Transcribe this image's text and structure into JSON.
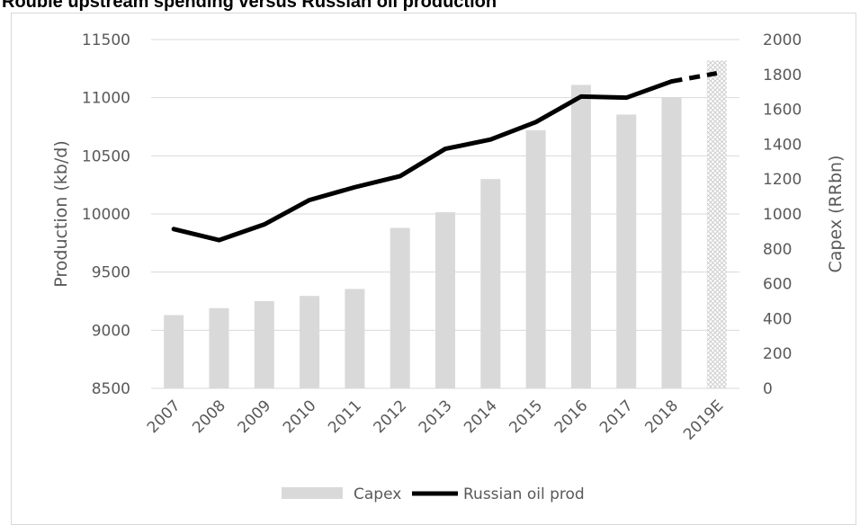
{
  "chart_data": {
    "type": "bar",
    "title": "Rouble upstream spending versus Russian oil production",
    "categories": [
      "2007",
      "2008",
      "2009",
      "2010",
      "2011",
      "2012",
      "2013",
      "2014",
      "2015",
      "2016",
      "2017",
      "2018",
      "2019E"
    ],
    "y_left": {
      "label": "Production (kb/d)",
      "min": 8500,
      "max": 11500,
      "ticks": [
        8500,
        9000,
        9500,
        10000,
        10500,
        11000,
        11500
      ]
    },
    "y_right": {
      "label": "Capex (RRbn)",
      "min": 0,
      "max": 2000,
      "ticks": [
        0,
        200,
        400,
        600,
        800,
        1000,
        1200,
        1400,
        1600,
        1800,
        2000
      ]
    },
    "series": [
      {
        "name": "Capex",
        "type": "bar",
        "axis": "right",
        "color": "#d9d9d9",
        "values": [
          420,
          460,
          500,
          530,
          570,
          920,
          1010,
          1200,
          1480,
          1740,
          1570,
          1670,
          1880
        ],
        "estimate_pattern_last": true
      },
      {
        "name": "Russian oil prod",
        "type": "line",
        "axis": "left",
        "color": "#000000",
        "values": [
          9870,
          9775,
          9910,
          10120,
          10230,
          10325,
          10560,
          10640,
          10790,
          11010,
          11000,
          11140,
          11210
        ],
        "dashed_last_segment": true
      }
    ],
    "legend": {
      "position": "bottom"
    },
    "grid": true
  }
}
